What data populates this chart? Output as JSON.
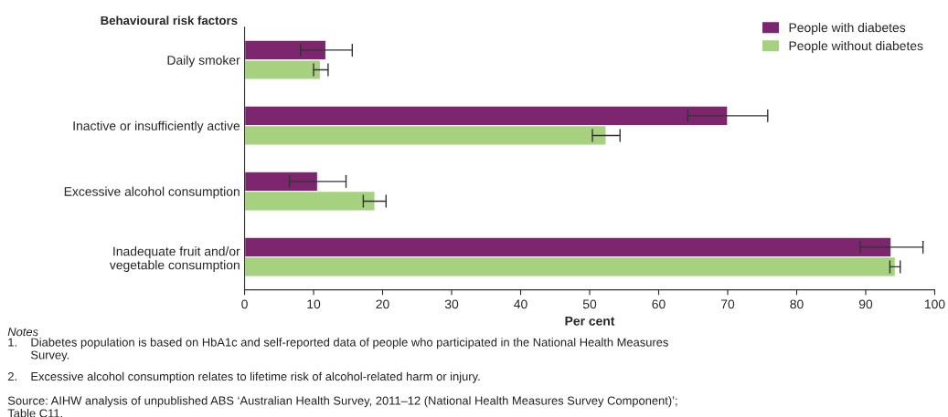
{
  "chart_data": {
    "type": "bar",
    "orientation": "horizontal",
    "ylabel": "Behavioural risk factors",
    "xlabel": "Per cent",
    "categories": [
      "Daily smoker",
      "Inactive or insufficiently active",
      "Excessive alcohol consumption",
      "Inadequate fruit and/or\nvegetable consumption"
    ],
    "series": [
      {
        "name": "People with diabetes",
        "color": "#7d256e",
        "values": [
          11.8,
          70.0,
          10.6,
          93.7
        ],
        "errors": [
          [
            8.1,
            15.6
          ],
          [
            64.2,
            75.8
          ],
          [
            6.5,
            14.7
          ],
          [
            89.2,
            98.3
          ]
        ]
      },
      {
        "name": "People without diabetes",
        "color": "#a6d17f",
        "values": [
          11.0,
          52.4,
          18.9,
          94.3
        ],
        "errors": [
          [
            10.0,
            12.1
          ],
          [
            50.4,
            54.4
          ],
          [
            17.2,
            20.5
          ],
          [
            93.5,
            95.0
          ]
        ]
      }
    ],
    "xlim": [
      0,
      100
    ],
    "xticks": [
      0,
      10,
      20,
      30,
      40,
      50,
      60,
      70,
      80,
      90,
      100
    ],
    "grid": false,
    "legend": "top right",
    "annotations": [
      "Notes",
      "1.    Diabetes population is based on HbA1c and self-reported data of people who participated in the National Health Measures\n       Survey.",
      "2.    Excessive alcohol consumption relates to lifetime risk of alcohol-related harm or injury.",
      "Source: AIHW analysis of unpublished ABS ‘Australian Health Survey, 2011–12 (National Health Measures Survey Component)’;\nTable C11."
    ]
  }
}
